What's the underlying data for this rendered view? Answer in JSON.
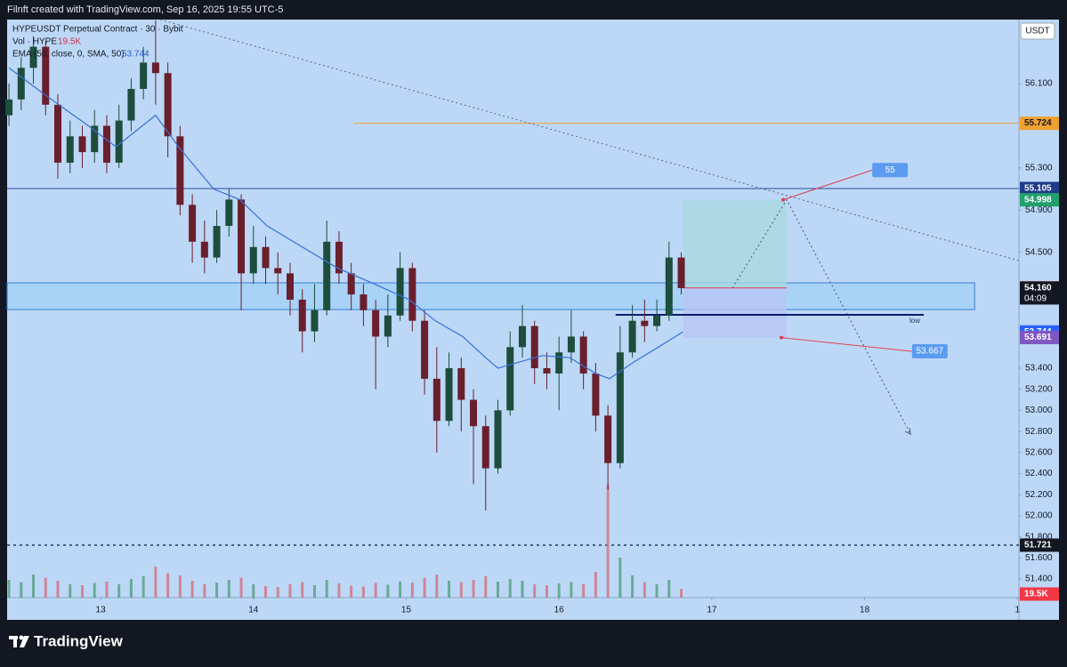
{
  "header": {
    "attribution": "Filnft created with TradingView.com, Sep 16, 2025 19:55 UTC-5"
  },
  "chart_data": {
    "type": "candlestick",
    "title": "HYPEUSDT Perpetual Contract · 30 · Bybit",
    "currency": "USDT",
    "up_color": "#1d4d3c",
    "down_color": "#6a1f2c",
    "grid": false,
    "x": [
      12.4,
      12.48,
      12.56,
      12.64,
      12.72,
      12.8,
      12.88,
      12.96,
      13.04,
      13.12,
      13.2,
      13.28,
      13.36,
      13.44,
      13.52,
      13.6,
      13.68,
      13.76,
      13.84,
      13.92,
      14.0,
      14.08,
      14.16,
      14.24,
      14.32,
      14.4,
      14.48,
      14.56,
      14.64,
      14.72,
      14.8,
      14.88,
      14.96,
      15.04,
      15.12,
      15.2,
      15.28,
      15.36,
      15.44,
      15.52,
      15.6,
      15.68,
      15.76,
      15.84,
      15.92,
      16.0,
      16.08,
      16.16,
      16.24,
      16.32,
      16.4,
      16.48,
      16.56,
      16.64,
      16.72,
      16.8
    ],
    "open": [
      55.8,
      55.95,
      56.25,
      56.45,
      55.9,
      55.35,
      55.6,
      55.45,
      55.7,
      55.35,
      55.75,
      56.05,
      56.3,
      56.2,
      55.6,
      54.95,
      54.6,
      54.45,
      54.75,
      55.0,
      54.3,
      54.55,
      54.35,
      54.3,
      54.05,
      53.75,
      53.95,
      54.6,
      54.3,
      54.1,
      53.95,
      53.7,
      53.9,
      54.35,
      53.85,
      53.3,
      52.9,
      53.4,
      53.1,
      52.85,
      52.45,
      53.0,
      53.6,
      53.8,
      53.4,
      53.35,
      53.55,
      53.7,
      53.35,
      52.95,
      52.5,
      53.55,
      53.85,
      53.8,
      53.9,
      54.45
    ],
    "high": [
      56.1,
      56.35,
      56.55,
      56.5,
      56.0,
      55.75,
      55.7,
      55.85,
      55.8,
      55.9,
      56.15,
      56.45,
      56.7,
      56.3,
      55.7,
      55.05,
      54.8,
      54.9,
      55.1,
      55.05,
      54.75,
      54.65,
      54.5,
      54.4,
      54.15,
      54.2,
      54.8,
      54.7,
      54.4,
      54.2,
      54.05,
      54.1,
      54.5,
      54.4,
      53.95,
      53.6,
      53.55,
      53.5,
      53.2,
      52.95,
      53.1,
      53.75,
      54.0,
      53.85,
      53.55,
      53.7,
      53.95,
      53.75,
      53.45,
      53.05,
      53.8,
      54.0,
      54.05,
      54.05,
      54.6,
      54.5
    ],
    "low": [
      55.7,
      55.85,
      56.1,
      55.8,
      55.2,
      55.25,
      55.3,
      55.35,
      55.25,
      55.3,
      55.65,
      55.95,
      55.9,
      55.4,
      54.85,
      54.4,
      54.3,
      54.4,
      54.65,
      53.95,
      54.2,
      54.2,
      54.1,
      53.9,
      53.55,
      53.65,
      53.9,
      54.2,
      53.95,
      53.8,
      53.2,
      53.6,
      53.85,
      53.75,
      53.15,
      52.6,
      52.85,
      52.8,
      52.3,
      52.05,
      52.4,
      52.95,
      53.5,
      53.25,
      53.2,
      53.0,
      53.45,
      53.2,
      52.8,
      52.25,
      52.45,
      53.5,
      53.65,
      53.75,
      53.85,
      54.1
    ],
    "close": [
      55.95,
      56.25,
      56.45,
      55.9,
      55.35,
      55.6,
      55.45,
      55.7,
      55.35,
      55.75,
      56.05,
      56.3,
      56.2,
      55.6,
      54.95,
      54.6,
      54.45,
      54.75,
      55.0,
      54.3,
      54.55,
      54.35,
      54.3,
      54.05,
      53.75,
      53.95,
      54.6,
      54.3,
      54.1,
      53.95,
      53.7,
      53.9,
      54.35,
      53.85,
      53.3,
      52.9,
      53.4,
      53.1,
      52.85,
      52.45,
      53.0,
      53.6,
      53.8,
      53.4,
      53.35,
      53.55,
      53.7,
      53.35,
      52.95,
      52.5,
      53.55,
      53.85,
      53.8,
      53.9,
      54.45,
      54.16
    ],
    "xlim": [
      12.388,
      19.01
    ],
    "xticks": [
      13,
      14,
      15,
      16,
      17,
      18,
      {
        "value": 19,
        "label": "1"
      }
    ],
    "ylim": [
      51.223,
      56.708
    ],
    "yticks": [
      {
        "value": 51.4,
        "label": "51.400"
      },
      {
        "value": 51.6,
        "label": "51.600"
      },
      {
        "value": 51.8,
        "label": "51.800"
      },
      {
        "value": 52,
        "label": "52.000"
      },
      {
        "value": 52.2,
        "label": "52.200"
      },
      {
        "value": 52.4,
        "label": "52.400"
      },
      {
        "value": 52.6,
        "label": "52.600"
      },
      {
        "value": 52.8,
        "label": "52.800"
      },
      {
        "value": 53,
        "label": "53.000"
      },
      {
        "value": 53.2,
        "label": "53.200"
      },
      {
        "value": 53.4,
        "label": "53.400"
      },
      {
        "value": 54.5,
        "label": "54.500"
      },
      {
        "value": 54.9,
        "label": "54.900"
      },
      {
        "value": 55.3,
        "label": "55.300"
      },
      {
        "value": 56.1,
        "label": "56.100"
      }
    ],
    "volume": {
      "label": "Vol · HYPE",
      "value_label": "19.5K",
      "last": 19500,
      "color_up": "#4f9a7a",
      "color_down": "#d46a78",
      "ylim": [
        0,
        400000
      ],
      "values": [
        40000,
        35000,
        52000,
        45000,
        38000,
        30000,
        28000,
        33000,
        36000,
        30000,
        42000,
        48000,
        70000,
        55000,
        50000,
        38000,
        30000,
        34000,
        40000,
        45000,
        30000,
        26000,
        24000,
        30000,
        35000,
        28000,
        40000,
        32000,
        27000,
        25000,
        33000,
        29000,
        36000,
        34000,
        45000,
        52000,
        38000,
        35000,
        40000,
        48000,
        36000,
        42000,
        38000,
        30000,
        28000,
        32000,
        35000,
        30000,
        58000,
        254000,
        90000,
        50000,
        35000,
        30000,
        40000,
        19500
      ]
    },
    "ema": {
      "label": "EMA (50, close, 0, SMA, 50)",
      "last": 53.744,
      "color": "#3a6fd8",
      "x": [
        12.4,
        12.63,
        12.92,
        13.1,
        13.36,
        13.51,
        13.74,
        13.91,
        14.09,
        14.32,
        14.55,
        14.79,
        15.02,
        15.19,
        15.37,
        15.52,
        15.6,
        15.72,
        15.89,
        16.07,
        16.24,
        16.33,
        16.48,
        16.65,
        16.81
      ],
      "values": [
        56.25,
        56.0,
        55.7,
        55.5,
        55.8,
        55.5,
        55.1,
        55.0,
        54.75,
        54.55,
        54.35,
        54.2,
        54.05,
        53.85,
        53.7,
        53.5,
        53.4,
        53.45,
        53.52,
        53.5,
        53.35,
        53.3,
        53.45,
        53.6,
        53.744
      ]
    },
    "hlines": [
      {
        "price": 55.724,
        "from": 14.659,
        "to": 19.01,
        "color": "#f0a030",
        "dash": false
      },
      {
        "price": 55.105,
        "from": 12.388,
        "to": 19.01,
        "color": "#2a4a9a",
        "dash": false
      },
      {
        "price": 51.721,
        "from": 12.388,
        "to": 19.01,
        "color": "#1e3a6a",
        "dash": true
      }
    ],
    "trendline": {
      "from": [
        13.39,
        56.708
      ],
      "to": [
        19.01,
        54.42
      ],
      "color": "#5a6a80"
    },
    "zone": {
      "top": 54.21,
      "bottom": 53.956,
      "from": 12.388,
      "to": 18.72,
      "color": "#9fd0f7",
      "border": "#3a7fd0"
    },
    "low_line": {
      "price": 53.906,
      "from": 16.37,
      "to": 18.387,
      "label": "low",
      "color": "#0d1b6e"
    },
    "position": {
      "from": 16.814,
      "to": 17.49,
      "target": 54.998,
      "entry": 54.162,
      "stop": 53.691,
      "target_color": "#a8d8e0",
      "stop_color": "#b7c6f5",
      "entry_color": "#e0404f"
    },
    "callouts": [
      {
        "value": 55,
        "label": "55.000",
        "from": [
          17.467,
          54.998
        ],
        "to": [
          18.05,
          55.28
        ]
      },
      {
        "value": 53.667,
        "from": [
          17.455,
          53.69
        ],
        "to": [
          18.31,
          53.56
        ]
      }
    ],
    "projection": {
      "x": [
        17.135,
        17.49,
        18.3
      ],
      "values": [
        54.162,
        54.998,
        52.775
      ]
    },
    "price_labels": [
      {
        "price": 55.724,
        "color": "#f0a030",
        "text": "#131722"
      },
      {
        "price": 55.105,
        "color": "#1e3a8a",
        "text": "#ffffff"
      },
      {
        "price": 54.998,
        "color": "#22a06b",
        "text": "#ffffff"
      },
      {
        "price": 54.162,
        "color": "#f23645",
        "text": "#ffffff"
      },
      {
        "price": {
          "value": 54.16,
          "label": "54.160"
        },
        "countdown": "04:09",
        "color": "#131722",
        "text": "#ffffff"
      },
      {
        "price": 53.744,
        "color": "#2962ff",
        "text": "#ffffff"
      },
      {
        "price": 53.691,
        "color": "#7e57c2",
        "text": "#ffffff"
      },
      {
        "price": 51.721,
        "color": "#131722",
        "text": "#ffffff"
      }
    ]
  },
  "footer": {
    "brand": "TradingView"
  }
}
